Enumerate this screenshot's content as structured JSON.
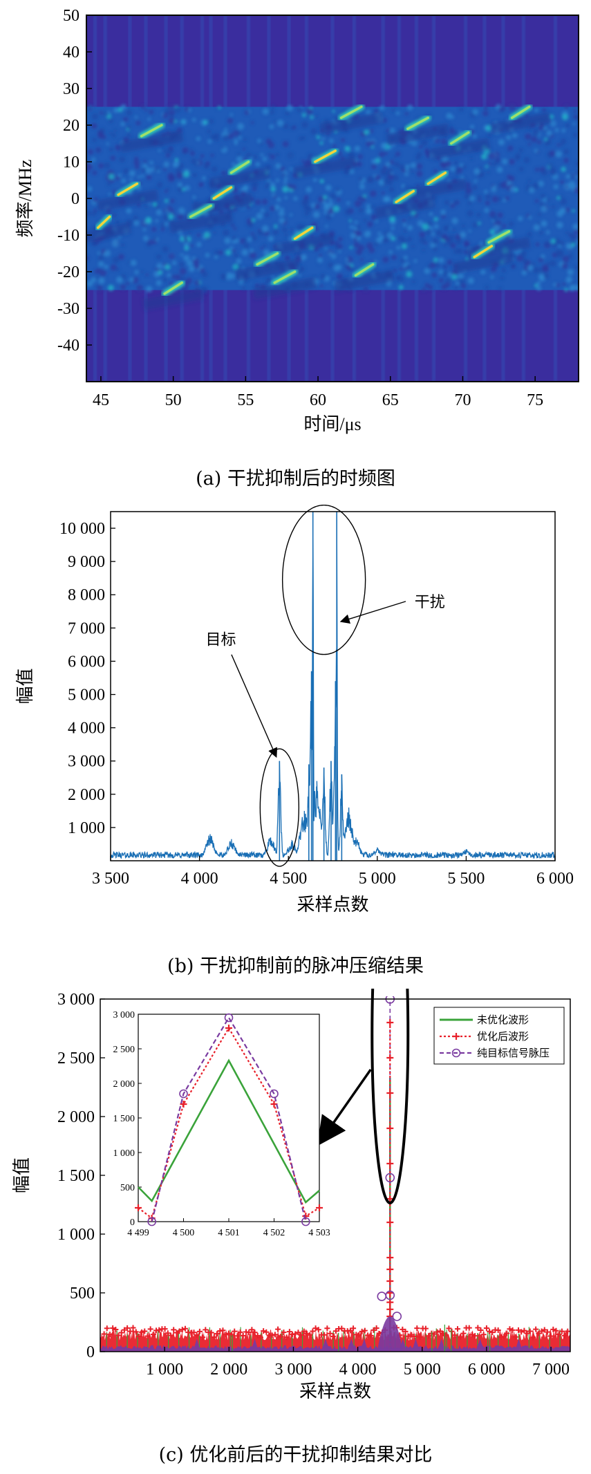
{
  "captions": {
    "a": "(a) 干扰抑制后的时频图",
    "b": "(b) 干扰抑制前的脉冲压缩结果",
    "c": "(c) 优化前后的干扰抑制结果对比"
  },
  "chart_data": [
    {
      "type": "heatmap",
      "xlabel": "时间/μs",
      "ylabel": "频率/MHz",
      "xlim": [
        44,
        78
      ],
      "ylim": [
        -50,
        50
      ],
      "x_ticks": [
        "45",
        "50",
        "55",
        "60",
        "65",
        "70",
        "75"
      ],
      "y_ticks": [
        "50",
        "40",
        "30",
        "20",
        "10",
        "0",
        "-10",
        "-20",
        "-30",
        "-40"
      ],
      "band": [
        -25,
        25
      ],
      "chirp_segments": [
        {
          "t0": 44.8,
          "f0": -8,
          "t1": 45.6,
          "f1": -5
        },
        {
          "t0": 46.2,
          "f0": 1,
          "t1": 47.5,
          "f1": 4
        },
        {
          "t0": 47.8,
          "f0": 17,
          "t1": 49.2,
          "f1": 20
        },
        {
          "t0": 49.4,
          "f0": -26,
          "t1": 50.6,
          "f1": -23
        },
        {
          "t0": 51.2,
          "f0": -5,
          "t1": 52.6,
          "f1": -2
        },
        {
          "t0": 52.8,
          "f0": 0,
          "t1": 54.0,
          "f1": 3
        },
        {
          "t0": 54.0,
          "f0": 7,
          "t1": 55.2,
          "f1": 10
        },
        {
          "t0": 55.8,
          "f0": -18,
          "t1": 57.2,
          "f1": -15
        },
        {
          "t0": 57.0,
          "f0": -23,
          "t1": 58.4,
          "f1": -20
        },
        {
          "t0": 58.4,
          "f0": -11,
          "t1": 59.6,
          "f1": -8
        },
        {
          "t0": 59.8,
          "f0": 10,
          "t1": 61.2,
          "f1": 13
        },
        {
          "t0": 61.6,
          "f0": 22,
          "t1": 63.0,
          "f1": 25
        },
        {
          "t0": 62.6,
          "f0": -21,
          "t1": 63.8,
          "f1": -18
        },
        {
          "t0": 65.4,
          "f0": -1,
          "t1": 66.6,
          "f1": 2
        },
        {
          "t0": 66.2,
          "f0": 19,
          "t1": 67.6,
          "f1": 22
        },
        {
          "t0": 67.6,
          "f0": 4,
          "t1": 68.8,
          "f1": 7
        },
        {
          "t0": 69.2,
          "f0": 15,
          "t1": 70.4,
          "f1": 18
        },
        {
          "t0": 70.8,
          "f0": -16,
          "t1": 72.0,
          "f1": -13
        },
        {
          "t0": 71.8,
          "f0": -12,
          "t1": 73.2,
          "f1": -9
        },
        {
          "t0": 73.4,
          "f0": 22,
          "t1": 74.6,
          "f1": 25
        }
      ],
      "vertical_stripes": [
        44.6,
        45.3,
        47.0,
        48.1,
        49.5,
        50.6,
        52.0,
        52.6,
        53.6,
        55.2,
        56.6,
        58.0,
        59.2,
        61.0,
        62.5,
        64.5,
        65.6,
        66.8,
        68.0,
        70.2,
        71.5,
        72.8,
        74.2,
        76.4
      ]
    },
    {
      "type": "line",
      "xlabel": "采样点数",
      "ylabel": "幅值",
      "xlim": [
        3500,
        6000
      ],
      "ylim": [
        0,
        10500
      ],
      "x_ticks": [
        "3 500",
        "4 000",
        "4 500",
        "5 000",
        "5 500",
        "6 000"
      ],
      "y_ticks": [
        "10 000",
        "9 000",
        "8 000",
        "7 000",
        "6 000",
        "5 000",
        "4 000",
        "3 000",
        "2 000",
        "1 000"
      ],
      "color": "#1a6fb5",
      "noise_floor": 200,
      "peaks": [
        {
          "x": 4060,
          "y": 800
        },
        {
          "x": 4180,
          "y": 650
        },
        {
          "x": 4400,
          "y": 700
        },
        {
          "x": 4450,
          "y": 3000
        },
        {
          "x": 4520,
          "y": 600
        },
        {
          "x": 4590,
          "y": 1500
        },
        {
          "x": 4615,
          "y": 2900
        },
        {
          "x": 4630,
          "y": 5700
        },
        {
          "x": 4638,
          "y": 10500
        },
        {
          "x": 4660,
          "y": 2400
        },
        {
          "x": 4700,
          "y": 2800
        },
        {
          "x": 4740,
          "y": 3000
        },
        {
          "x": 4765,
          "y": 5400
        },
        {
          "x": 4772,
          "y": 10500
        },
        {
          "x": 4800,
          "y": 2600
        },
        {
          "x": 4840,
          "y": 1600
        },
        {
          "x": 4880,
          "y": 700
        },
        {
          "x": 5000,
          "y": 400
        },
        {
          "x": 5500,
          "y": 350
        }
      ],
      "annotations": [
        {
          "text": "目标",
          "points_to": "4 450"
        },
        {
          "text": "干扰",
          "points_to": "4 700"
        }
      ]
    },
    {
      "type": "line",
      "xlabel": "采样点数",
      "ylabel": "幅值",
      "xlim": [
        0,
        7300
      ],
      "ylim": [
        0,
        3000
      ],
      "x_ticks": [
        "1 000",
        "2 000",
        "3 000",
        "4 000",
        "5 000",
        "6 000",
        "7 000"
      ],
      "y_ticks": [
        "3 000",
        "2 500",
        "2 000",
        "1 500",
        "1 000",
        "500",
        "0"
      ],
      "legend_position": "top-right",
      "series": [
        {
          "name": "未优化波形",
          "color": "#3aa33a",
          "peak": {
            "x": 4501,
            "y": 2330
          },
          "floor": 150
        },
        {
          "name": "优化后波形",
          "color": "#e8202a",
          "peak": {
            "x": 4501,
            "y": 2800
          },
          "floor": 120
        },
        {
          "name": "纯目标信号脉压",
          "color": "#7a3aa0",
          "peak": {
            "x": 4501,
            "y": 3000
          },
          "floor": 40
        }
      ],
      "inset": {
        "xlim": [
          4499,
          4503
        ],
        "ylim": [
          0,
          3000
        ],
        "x_ticks": [
          "4 499",
          "4 500",
          "4 501",
          "4 502",
          "4 503"
        ],
        "y_ticks": [
          "3 000",
          "2 500",
          "2 000",
          "1 500",
          "1 000",
          "500",
          "0"
        ],
        "series": [
          {
            "name": "未优化波形",
            "x": [
              4499,
              4499.3,
              4501,
              4502.7,
              4503
            ],
            "y": [
              500,
              300,
              2330,
              280,
              450
            ]
          },
          {
            "name": "优化后波形",
            "x": [
              4499,
              4499.3,
              4500,
              4501,
              4502,
              4502.7,
              4503
            ],
            "y": [
              200,
              50,
              1700,
              2800,
              1700,
              80,
              200
            ]
          },
          {
            "name": "纯目标信号脉压",
            "x": [
              4499.3,
              4500,
              4501,
              4502,
              4502.7
            ],
            "y": [
              0,
              1850,
              2950,
              1850,
              0
            ]
          }
        ]
      }
    }
  ]
}
